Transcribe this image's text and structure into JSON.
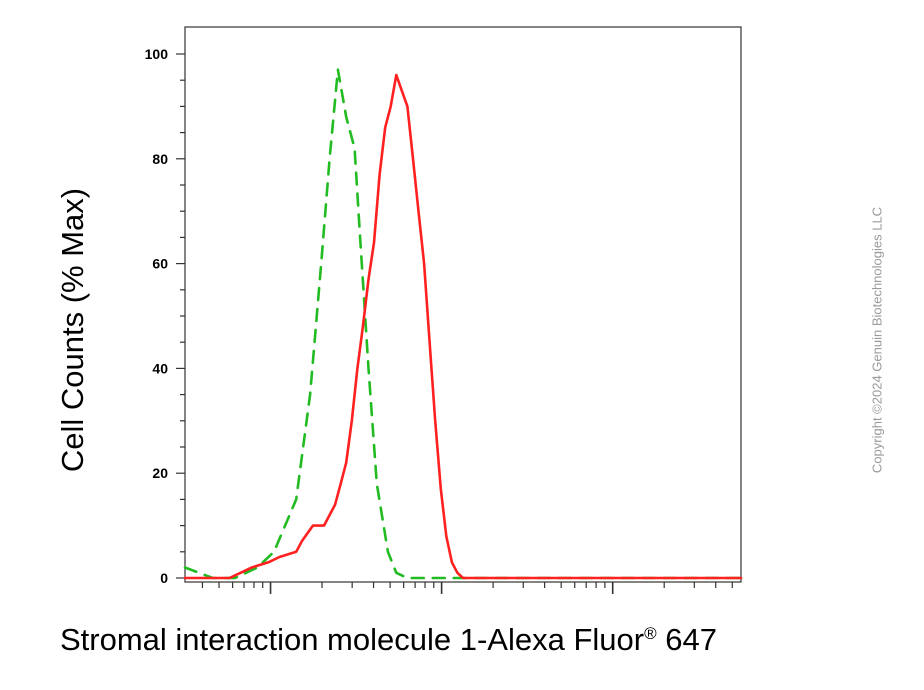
{
  "chart_data": {
    "type": "line",
    "title": "",
    "xlabel_main": "Stromal interaction molecule 1-Alexa Fluor",
    "xlabel_sup": "®",
    "xlabel_tail": " 647",
    "ylabel": "Cell Counts (% Max)",
    "xscale": "log",
    "xlim": [
      0,
      1
    ],
    "ylim": [
      0,
      100
    ],
    "yticks": [
      "0",
      "20",
      "40",
      "60",
      "80",
      "100"
    ],
    "ytick_values": [
      0,
      20,
      40,
      60,
      80,
      100
    ],
    "grid": false,
    "legend": "none",
    "series": [
      {
        "style": "dashed",
        "color": "#22bb22",
        "x": [
          0.0,
          0.05,
          0.09,
          0.13,
          0.16,
          0.2,
          0.225,
          0.245,
          0.26,
          0.275,
          0.29,
          0.305,
          0.315,
          0.33,
          0.345,
          0.365,
          0.38,
          0.4,
          0.42,
          0.44,
          1.0
        ],
        "y": [
          2,
          0,
          0,
          2,
          5,
          15,
          35,
          60,
          80,
          97,
          88,
          82,
          65,
          40,
          18,
          5,
          1,
          0,
          0,
          0,
          0
        ]
      },
      {
        "style": "solid",
        "color": "#ff2020",
        "x": [
          0.0,
          0.05,
          0.08,
          0.1,
          0.12,
          0.15,
          0.17,
          0.2,
          0.21,
          0.23,
          0.25,
          0.27,
          0.28,
          0.29,
          0.3,
          0.31,
          0.32,
          0.33,
          0.34,
          0.35,
          0.36,
          0.37,
          0.38,
          0.39,
          0.4,
          0.41,
          0.42,
          0.43,
          0.44,
          0.45,
          0.46,
          0.47,
          0.48,
          0.49,
          0.5,
          0.52,
          0.55,
          1.0
        ],
        "y": [
          0,
          0,
          0,
          1,
          2,
          3,
          4,
          5,
          7,
          10,
          10,
          14,
          18,
          22,
          30,
          40,
          48,
          57,
          64,
          77,
          86,
          90,
          96,
          93,
          90,
          80,
          70,
          60,
          45,
          30,
          17,
          8,
          3,
          1,
          0,
          0,
          0,
          0
        ]
      }
    ]
  },
  "watermark": "Copyright ©2024 Genuin Biotechnologies LLC"
}
